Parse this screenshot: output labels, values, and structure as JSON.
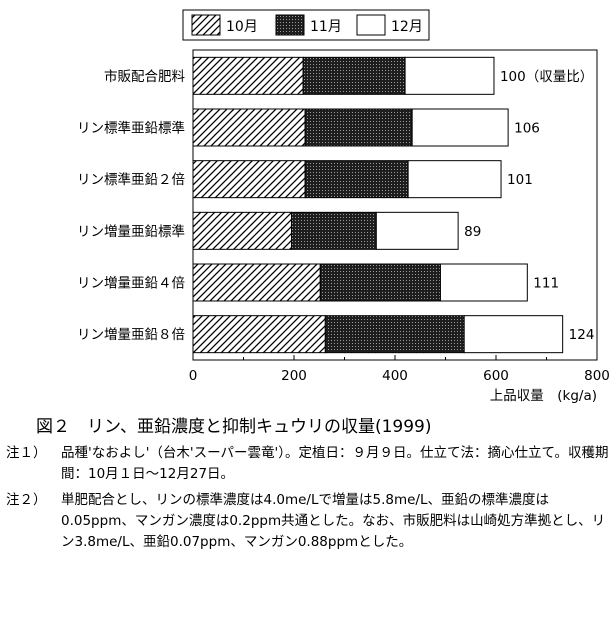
{
  "chart_data": {
    "type": "bar",
    "orientation": "horizontal",
    "stacked": true,
    "categories": [
      "市販配合肥料",
      "リン標準亜鉛標準",
      "リン標準亜鉛２倍",
      "リン増量亜鉛標準",
      "リン増量亜鉛４倍",
      "リン増量亜鉛８倍"
    ],
    "series": [
      {
        "name": "10月",
        "values": [
          218,
          222,
          222,
          195,
          252,
          262
        ],
        "pattern": "diagonal-hatch"
      },
      {
        "name": "11月",
        "values": [
          202,
          212,
          204,
          168,
          238,
          275
        ],
        "pattern": "dark-dotted"
      },
      {
        "name": "12月",
        "values": [
          176,
          190,
          184,
          162,
          172,
          195
        ],
        "pattern": "white"
      }
    ],
    "totals": [
      596,
      624,
      610,
      525,
      662,
      732
    ],
    "data_labels": [
      "100（収量比）",
      "106",
      "101",
      "89",
      "111",
      "124"
    ],
    "xlabel": "上品収量　(kg/a)",
    "xlim": [
      0,
      800
    ],
    "xticks": [
      0,
      200,
      400,
      600,
      800
    ],
    "legend_position": "top",
    "grid": false
  },
  "caption": "図２　リン、亜鉛濃度と抑制キュウリの収量(1999)",
  "notes": [
    {
      "label": "注１）",
      "text": "品種'なおよし'（台木'スーパー雲竜'）。定植日：９月９日。仕立て法：摘心仕立て。収穫期間：10月１日～12月27日。"
    },
    {
      "label": "注２）",
      "text": "単肥配合とし、リンの標準濃度は4.0me/Lで増量は5.8me/L、亜鉛の標準濃度は0.05ppm、マンガン濃度は0.2ppm共通とした。なお、市販肥料は山崎処方準拠とし、リン3.8me/L、亜鉛0.07ppm、マンガン0.88ppmとした。"
    }
  ]
}
